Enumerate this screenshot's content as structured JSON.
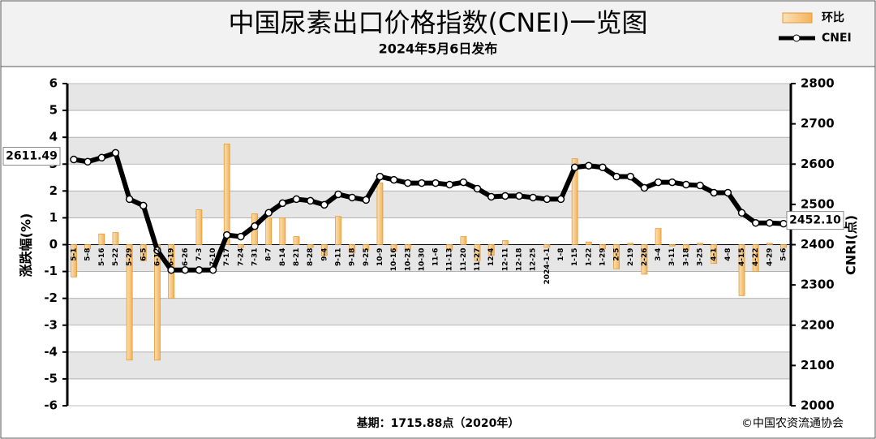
{
  "chart_data": {
    "type": "combo",
    "title": "中国尿素出口价格指数(CNEI)一览图",
    "subtitle": "2024年5月6日发布",
    "footnote": "基期：1715.88点（2020年）",
    "source": "©中国农资流通协会",
    "y_label": "涨跌幅(%)",
    "y2_label": "CNRI(点)",
    "categories": [
      "5-1",
      "5-8",
      "5-16",
      "5-22",
      "5-29",
      "6-5",
      "6-12",
      "6-19",
      "6-26",
      "7-3",
      "7-10",
      "7-17",
      "7-24",
      "7-31",
      "8-7",
      "8-14",
      "8-21",
      "8-28",
      "9-4",
      "9-11",
      "9-18",
      "9-25",
      "10-9",
      "10-16",
      "10-23",
      "10-30",
      "11-6",
      "11-13",
      "11-20",
      "11-27",
      "12-4",
      "12-11",
      "12-18",
      "12-25",
      "2024-1-1",
      "1-8",
      "1-15",
      "1-22",
      "1-29",
      "2-5",
      "2-19",
      "2-26",
      "3-4",
      "3-11",
      "3-18",
      "3-25",
      "4-1",
      "4-8",
      "4-15",
      "4-22",
      "4-29",
      "5-6"
    ],
    "series": [
      {
        "name": "环比",
        "type": "bar",
        "axis": "y",
        "color": "#f3b35a",
        "values": [
          -1.2,
          -0.15,
          0.4,
          0.45,
          -4.3,
          -0.6,
          -4.3,
          -2.0,
          0,
          1.3,
          0,
          3.75,
          -0.1,
          1.15,
          1.0,
          1.0,
          0.3,
          -0.1,
          -0.4,
          1.05,
          -0.3,
          -0.2,
          2.3,
          -0.25,
          -0.2,
          0,
          0,
          -0.2,
          0.3,
          -0.6,
          -0.4,
          0.15,
          0,
          0,
          -0.1,
          0,
          3.2,
          0.1,
          -0.15,
          -0.9,
          0.05,
          -1.1,
          0.6,
          -0.05,
          -0.2,
          0.05,
          -0.7,
          0,
          -1.9,
          -1.0,
          0.05,
          -0.1
        ]
      },
      {
        "name": "CNEI",
        "type": "line",
        "axis": "y2",
        "color": "#000000",
        "values": [
          2611.49,
          2606,
          2616,
          2628,
          2513,
          2497,
          2386,
          2337,
          2337,
          2337,
          2337,
          2424,
          2420,
          2446,
          2479,
          2503,
          2513,
          2509,
          2499,
          2525,
          2517,
          2511,
          2569,
          2561,
          2553,
          2553,
          2553,
          2549,
          2555,
          2539,
          2519,
          2521,
          2521,
          2517,
          2513,
          2513,
          2592,
          2596,
          2592,
          2569,
          2569,
          2541,
          2555,
          2555,
          2549,
          2547,
          2529,
          2529,
          2479,
          2454,
          2454,
          2452.1
        ],
        "value_labels": [
          "2611.49",
          null,
          null,
          null,
          null,
          null,
          null,
          null,
          null,
          null,
          null,
          null,
          null,
          null,
          null,
          null,
          null,
          null,
          null,
          null,
          null,
          null,
          null,
          null,
          null,
          null,
          null,
          null,
          null,
          null,
          null,
          null,
          null,
          null,
          null,
          null,
          null,
          null,
          null,
          null,
          null,
          null,
          null,
          null,
          null,
          null,
          null,
          null,
          null,
          null,
          null,
          "2452.10"
        ]
      }
    ],
    "ylim": [
      -6,
      6
    ],
    "yticks": [
      -6,
      -5,
      -4,
      -3,
      -2,
      -1,
      0,
      1,
      2,
      3,
      4,
      5,
      6
    ],
    "y2lim": [
      2000,
      2800
    ],
    "y2ticks": [
      2000,
      2100,
      2200,
      2300,
      2400,
      2500,
      2600,
      2700,
      2800
    ],
    "grid": true,
    "legend": "top-right"
  }
}
